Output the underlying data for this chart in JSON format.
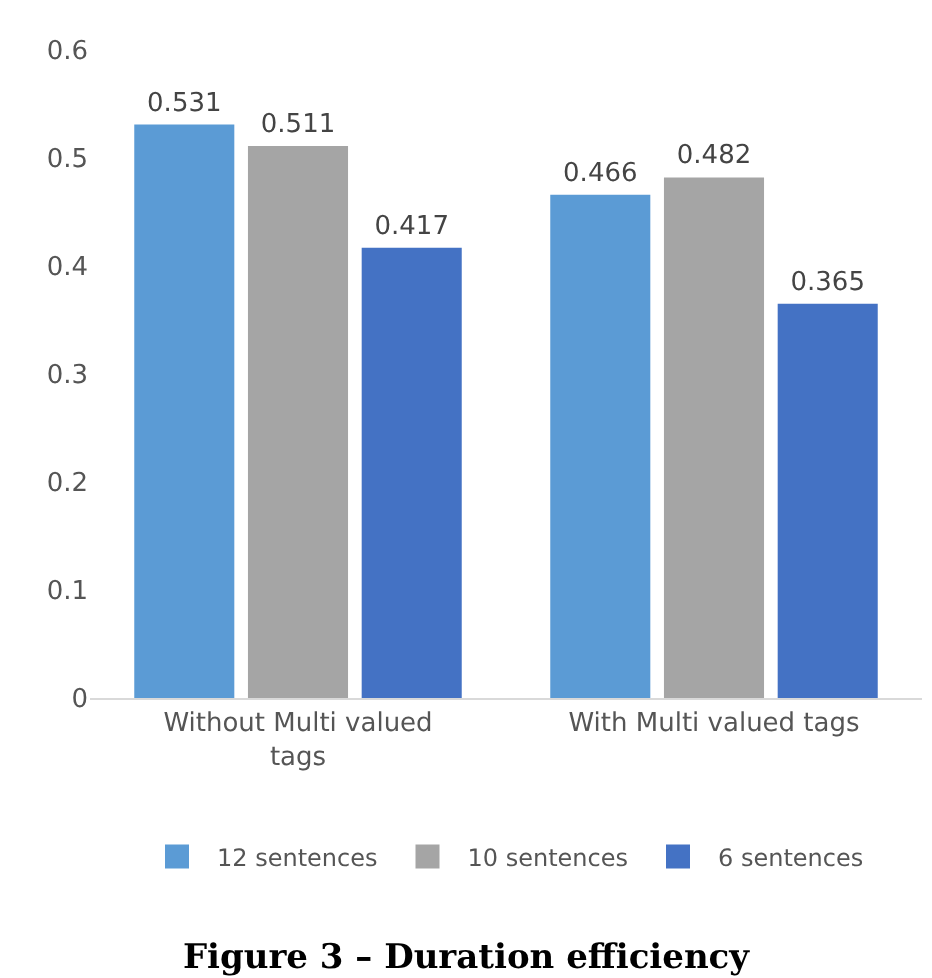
{
  "chart_data": {
    "type": "bar",
    "title": "Figure 3 – Duration efficiency",
    "categories": [
      "Without Multi valued tags",
      "With Multi valued tags"
    ],
    "series": [
      {
        "name": "12 sentences",
        "color": "#5b9bd5",
        "values": [
          0.531,
          0.466
        ]
      },
      {
        "name": "10 sentences",
        "color": "#a5a5a5",
        "values": [
          0.511,
          0.482
        ]
      },
      {
        "name": "6 sentences",
        "color": "#4472c4",
        "values": [
          0.417,
          0.365
        ]
      }
    ],
    "ylim": [
      0,
      0.6
    ],
    "yticks": [
      0,
      0.1,
      0.2,
      0.3,
      0.4,
      0.5,
      0.6
    ],
    "grid": false,
    "legend": "bottom",
    "data_labels": true
  }
}
